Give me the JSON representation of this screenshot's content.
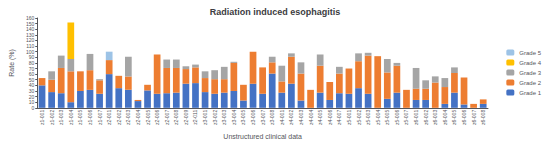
{
  "chart_data": {
    "type": "bar",
    "title": "Radiation induced esophagitis",
    "xlabel": "Unstructured clinical data",
    "ylabel": "Rate (%)",
    "stacked": true,
    "grid": false,
    "legend": "right",
    "ylim": [
      0,
      160
    ],
    "yticks": [
      0,
      10,
      20,
      30,
      40,
      50,
      60,
      70,
      80,
      90,
      100,
      110,
      120,
      130,
      140,
      150,
      160
    ],
    "categories": [
      "z1-001",
      "z1-002",
      "z1-003",
      "z1-004",
      "z1-005",
      "z1-006",
      "z1-007",
      "z2-001",
      "z2-002",
      "z2-003",
      "z2-004",
      "z2-005",
      "z2-006",
      "z2-007",
      "z2-008",
      "z2-009",
      "z2-011",
      "z3-001",
      "z3-002",
      "z3-003",
      "z3-004",
      "z3-005",
      "z3-006",
      "z3-007",
      "z3-008",
      "z4-001",
      "z4-002",
      "z4-003",
      "z4-004",
      "z4-005",
      "z4-006",
      "z4-007",
      "z5-001",
      "z5-002",
      "z5-003",
      "z5-004",
      "z5-005",
      "z5-006",
      "z5-007",
      "z6-001",
      "z6-002",
      "z6-003",
      "z6-004",
      "z6-005",
      "z6-006",
      "z6-007",
      "z6-008"
    ],
    "series": [
      {
        "name": "Grade 1",
        "color": "#4472C4",
        "values": [
          40,
          28,
          26,
          10,
          30,
          32,
          25,
          60,
          35,
          32,
          12,
          31,
          25,
          26,
          27,
          43,
          44,
          28,
          25,
          27,
          30,
          13,
          43,
          25,
          61,
          27,
          43,
          13,
          0,
          27,
          14,
          26,
          25,
          35,
          25,
          0,
          16,
          27,
          0,
          14,
          14,
          0,
          7,
          27,
          6,
          0,
          7
        ]
      },
      {
        "name": "Grade 2",
        "color": "#ED7D31",
        "values": [
          13,
          22,
          45,
          55,
          35,
          35,
          24,
          25,
          22,
          24,
          2,
          10,
          70,
          45,
          44,
          26,
          28,
          25,
          26,
          24,
          50,
          28,
          57,
          47,
          20,
          20,
          48,
          48,
          32,
          48,
          32,
          35,
          45,
          48,
          68,
          92,
          47,
          48,
          32,
          20,
          20,
          45,
          30,
          35,
          48,
          7,
          8
        ]
      },
      {
        "name": "Grade 3",
        "color": "#A5A5A5",
        "values": [
          0,
          15,
          22,
          22,
          0,
          29,
          2,
          0,
          0,
          35,
          0,
          0,
          0,
          15,
          15,
          5,
          5,
          12,
          16,
          22,
          2,
          0,
          0,
          0,
          10,
          28,
          6,
          20,
          0,
          20,
          0,
          12,
          0,
          14,
          5,
          0,
          24,
          5,
          0,
          37,
          15,
          11,
          16,
          10,
          0,
          0,
          0
        ]
      },
      {
        "name": "Grade 4",
        "color": "#FFC000",
        "values": [
          0,
          0,
          0,
          65,
          0,
          0,
          0,
          0,
          0,
          0,
          0,
          0,
          0,
          0,
          0,
          0,
          0,
          0,
          0,
          0,
          0,
          0,
          0,
          0,
          0,
          0,
          0,
          0,
          0,
          0,
          0,
          0,
          0,
          0,
          0,
          0,
          0,
          0,
          0,
          0,
          0,
          0,
          0,
          0,
          0,
          0,
          0
        ]
      },
      {
        "name": "Grade 5",
        "color": "#9DC3E6",
        "values": [
          0,
          0,
          0,
          0,
          0,
          0,
          0,
          15,
          0,
          0,
          0,
          0,
          0,
          0,
          0,
          0,
          0,
          0,
          0,
          0,
          0,
          0,
          0,
          0,
          0,
          0,
          0,
          0,
          0,
          0,
          0,
          0,
          0,
          0,
          0,
          0,
          0,
          0,
          0,
          0,
          0,
          0,
          0,
          0,
          0,
          0,
          0
        ]
      }
    ]
  }
}
